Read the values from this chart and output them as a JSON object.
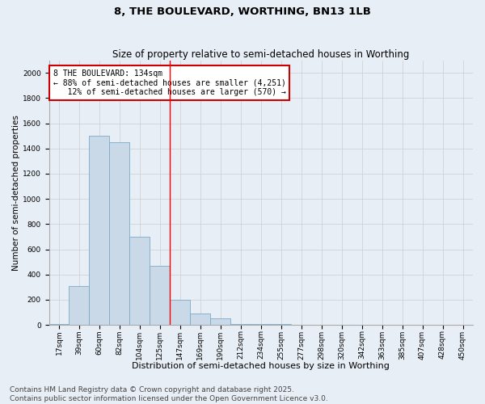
{
  "title1": "8, THE BOULEVARD, WORTHING, BN13 1LB",
  "title2": "Size of property relative to semi-detached houses in Worthing",
  "xlabel": "Distribution of semi-detached houses by size in Worthing",
  "ylabel": "Number of semi-detached properties",
  "bar_labels": [
    "17sqm",
    "39sqm",
    "60sqm",
    "82sqm",
    "104sqm",
    "125sqm",
    "147sqm",
    "169sqm",
    "190sqm",
    "212sqm",
    "234sqm",
    "255sqm",
    "277sqm",
    "298sqm",
    "320sqm",
    "342sqm",
    "363sqm",
    "385sqm",
    "407sqm",
    "428sqm",
    "450sqm"
  ],
  "bar_values": [
    10,
    310,
    1500,
    1450,
    700,
    470,
    200,
    90,
    55,
    10,
    10,
    5,
    0,
    0,
    0,
    0,
    0,
    0,
    0,
    0,
    0
  ],
  "bar_color": "#c9d9e8",
  "bar_edge_color": "#7aaac8",
  "grid_color": "#cccccc",
  "bg_color": "#e8eef5",
  "red_line_x": 5.5,
  "annotation_text": "8 THE BOULEVARD: 134sqm\n← 88% of semi-detached houses are smaller (4,251)\n   12% of semi-detached houses are larger (570) →",
  "annotation_box_color": "#ffffff",
  "annotation_border_color": "#cc0000",
  "ylim": [
    0,
    2100
  ],
  "yticks": [
    0,
    200,
    400,
    600,
    800,
    1000,
    1200,
    1400,
    1600,
    1800,
    2000
  ],
  "footnote": "Contains HM Land Registry data © Crown copyright and database right 2025.\nContains public sector information licensed under the Open Government Licence v3.0.",
  "title1_fontsize": 9.5,
  "title2_fontsize": 8.5,
  "xlabel_fontsize": 8,
  "ylabel_fontsize": 7.5,
  "tick_fontsize": 6.5,
  "annotation_fontsize": 7,
  "footnote_fontsize": 6.5
}
